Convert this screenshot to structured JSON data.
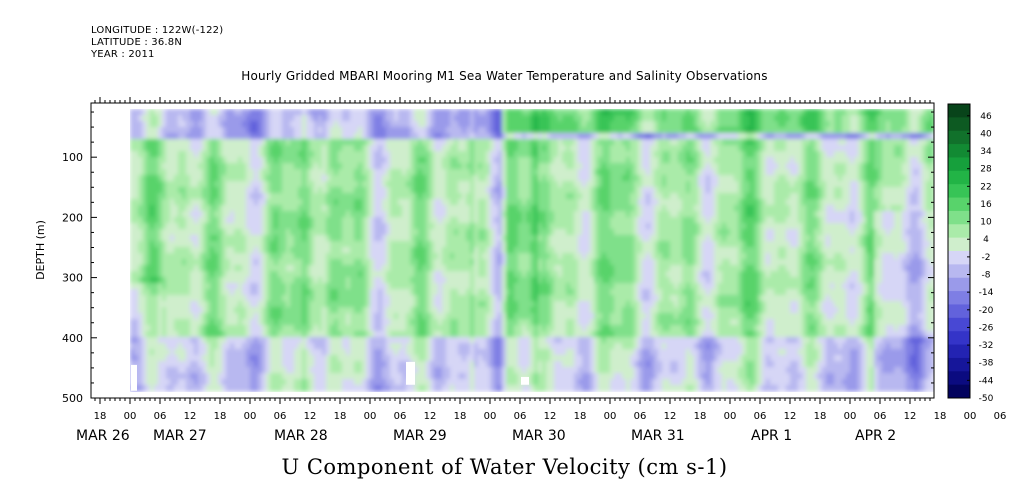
{
  "header": {
    "longitude": "LONGITUDE : 122W(-122)",
    "latitude": "LATITUDE : 36.8N",
    "year": "YEAR : 2011"
  },
  "chart_data": {
    "type": "heatmap",
    "title": "Hourly Gridded MBARI Mooring M1 Sea Water Temperature and Salinity Observations",
    "xlabel": "U Component of Water Velocity (cm s-1)",
    "ylabel": "DEPTH (m)",
    "ylim": [
      500,
      10
    ],
    "y_ticks": [
      100,
      200,
      300,
      400,
      500
    ],
    "x_hour_ticks": [
      "18",
      "00",
      "06",
      "12",
      "18",
      "00",
      "06",
      "12",
      "18",
      "00",
      "06",
      "12",
      "18",
      "00",
      "06",
      "12",
      "18",
      "00",
      "06",
      "12",
      "18",
      "00",
      "06",
      "12",
      "18",
      "00",
      "06",
      "12",
      "18",
      "00",
      "06",
      "12"
    ],
    "x_date_labels": [
      "MAR 26",
      "MAR 27",
      "MAR 28",
      "MAR 29",
      "MAR 30",
      "MAR 31",
      "APR  1",
      "APR  2"
    ],
    "colorbar_ticks": [
      "46",
      "40",
      "34",
      "28",
      "22",
      "16",
      "10",
      "4",
      "-2",
      "-8",
      "-14",
      "-20",
      "-26",
      "-32",
      "-38",
      "-44",
      "-50"
    ],
    "colorbar_range": [
      -50,
      50
    ],
    "colorbar_colors": [
      "#08441a",
      "#0d5a22",
      "#11712b",
      "#128a33",
      "#16a03c",
      "#22b446",
      "#37c456",
      "#58d36b",
      "#7fe08a",
      "#aaeba9",
      "#cfeecc",
      "#d6d6f6",
      "#b8b8f0",
      "#9a9aea",
      "#7e7ee4",
      "#6262dc",
      "#4848d4",
      "#3434c8",
      "#2323b2",
      "#16169a",
      "#0b0b80",
      "#03035e"
    ],
    "missing_color": "#ffffff"
  }
}
